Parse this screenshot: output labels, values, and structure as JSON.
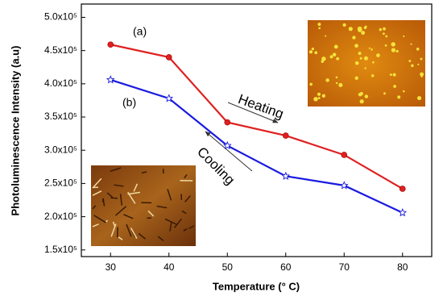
{
  "chart_data": {
    "type": "line",
    "x_label": "Temperature (° C)",
    "y_label": "Photoluminescence Intensity (a.u)",
    "x": [
      30,
      40,
      50,
      60,
      70,
      80
    ],
    "series": [
      {
        "color": "#e02020",
        "marker": "circle",
        "values": [
          459000,
          440000,
          342000,
          322000,
          293000,
          242000
        ]
      },
      {
        "color": "#1a1ae0",
        "marker": "star",
        "values": [
          406000,
          378000,
          307000,
          261000,
          247000,
          206000
        ]
      }
    ],
    "xlim": [
      25,
      85
    ],
    "xticks": [
      30,
      40,
      50,
      60,
      70,
      80
    ],
    "ylim": [
      140000,
      520000
    ],
    "yticks": [
      {
        "value": 150000,
        "label": "1.5x10⁵"
      },
      {
        "value": 200000,
        "label": "2.0x10⁵"
      },
      {
        "value": 250000,
        "label": "2.5x10⁵"
      },
      {
        "value": 300000,
        "label": "3.0x10⁵"
      },
      {
        "value": 350000,
        "label": "3.5x10⁵"
      },
      {
        "value": 400000,
        "label": "4.0x10⁵"
      },
      {
        "value": 450000,
        "label": "4.5x10⁵"
      },
      {
        "value": 500000,
        "label": "5.0x10⁵"
      }
    ],
    "annotations": [
      "(a)",
      "(b)",
      "Heating",
      "Cooling"
    ]
  }
}
